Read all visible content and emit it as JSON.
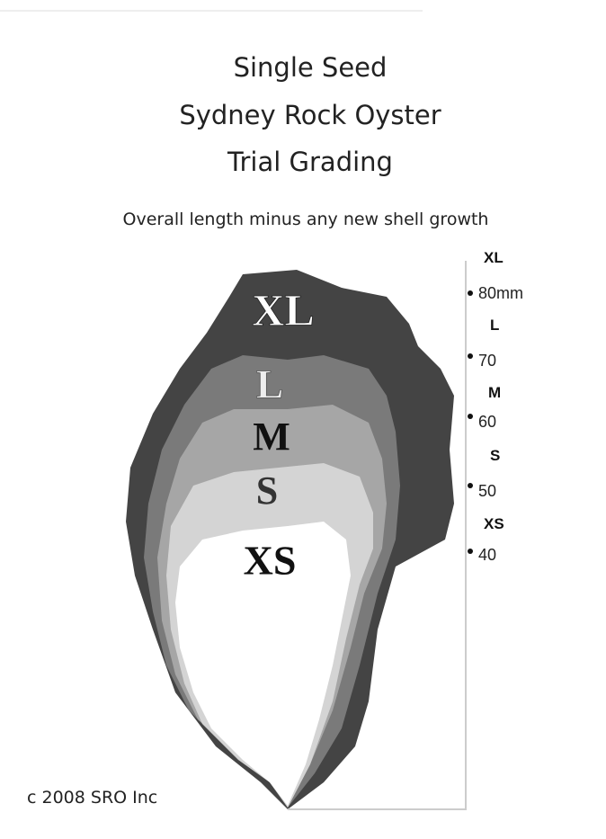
{
  "title": [
    "Single Seed",
    "Sydney Rock Oyster",
    "Trial Grading"
  ],
  "subtitle": "Overall length minus any new shell growth",
  "zones": [
    "XL",
    "L",
    "M",
    "S",
    "XS"
  ],
  "scale": {
    "grades": [
      "XL",
      "L",
      "M",
      "S",
      "XS"
    ],
    "marks": [
      "80mm",
      "70",
      "60",
      "50",
      "40"
    ]
  },
  "footer": "c 2008 SRO Inc"
}
